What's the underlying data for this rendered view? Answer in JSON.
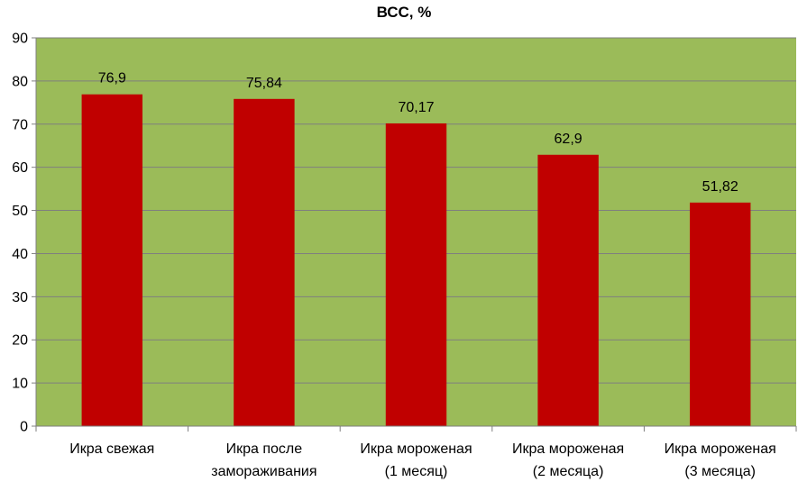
{
  "chart_data": {
    "type": "bar",
    "title": "ВСС, %",
    "xlabel": "",
    "ylabel": "",
    "ylim": [
      0,
      90
    ],
    "yticks": [
      "0",
      "10",
      "20",
      "30",
      "40",
      "50",
      "60",
      "70",
      "80",
      "90"
    ],
    "grid": true,
    "legend": "none",
    "categories": [
      [
        "Икра свежая"
      ],
      [
        "Икра после",
        "замораживания"
      ],
      [
        "Икра мороженая",
        "(1 месяц)"
      ],
      [
        "Икра мороженая",
        "(2 месяца)"
      ],
      [
        "Икра мороженая",
        "(3 месяца)"
      ]
    ],
    "values": [
      76.9,
      75.84,
      70.17,
      62.9,
      51.82
    ],
    "value_labels": [
      "76,9",
      "75,84",
      "70,17",
      "62,9",
      "51,82"
    ],
    "colors": {
      "plot_background": "#9BBB59",
      "bar": "#C00000",
      "gridline": "#7F7F7F",
      "axis": "#7F7F7F"
    }
  }
}
